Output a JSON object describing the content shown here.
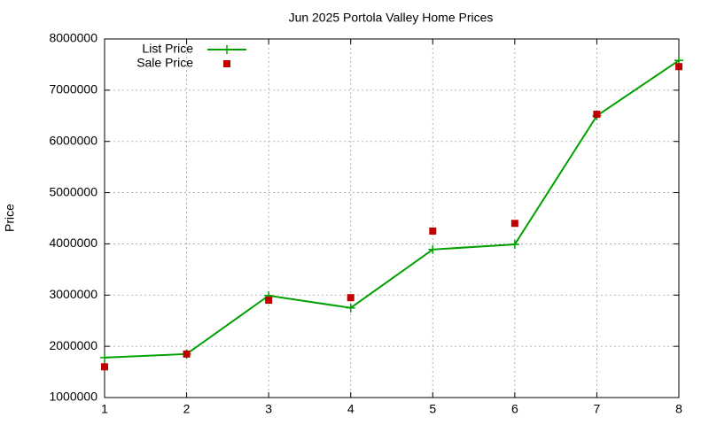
{
  "chart_data": {
    "type": "line",
    "title": "Jun 2025 Portola Valley Home Prices",
    "y_label": "Price",
    "x": [
      1,
      2,
      3,
      4,
      5,
      6,
      7,
      8
    ],
    "series": [
      {
        "name": "List Price",
        "color": "#00a000",
        "style": "line",
        "values": [
          1780000,
          1850000,
          2990000,
          2750000,
          3890000,
          3990000,
          6500000,
          7580000
        ]
      },
      {
        "name": "Sale Price",
        "color": "#c00000",
        "style": "points",
        "values": [
          1600000,
          1850000,
          2900000,
          2950000,
          4250000,
          4400000,
          6530000,
          7460000
        ]
      }
    ],
    "xlim": [
      1,
      8
    ],
    "ylim": [
      1000000,
      8000000
    ],
    "xticks": [
      1,
      2,
      3,
      4,
      5,
      6,
      7,
      8
    ],
    "yticks": [
      1000000,
      2000000,
      3000000,
      4000000,
      5000000,
      6000000,
      7000000,
      8000000
    ],
    "grid": true,
    "legend": "top-left"
  }
}
